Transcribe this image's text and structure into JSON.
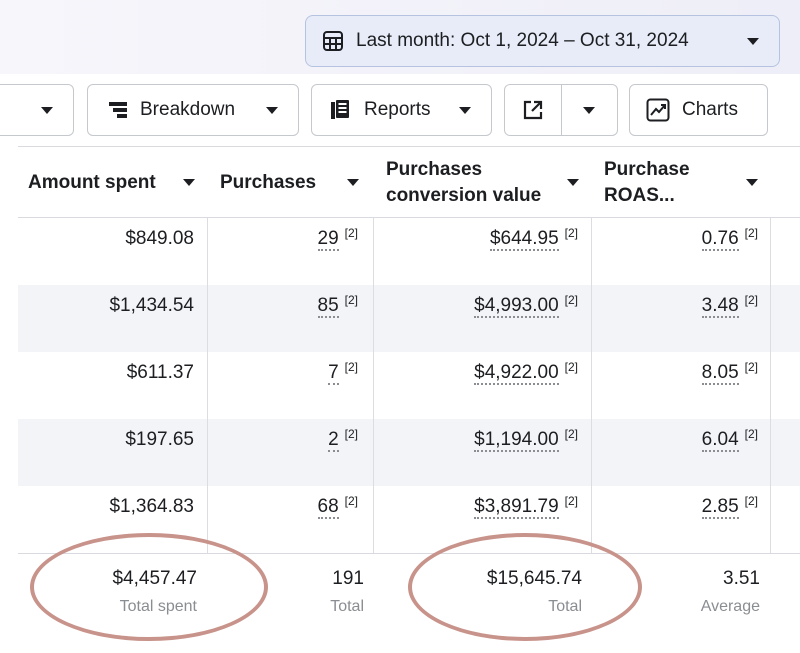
{
  "date_range": {
    "label": "Last month: Oct 1, 2024 – Oct 31, 2024",
    "icon": "calendar-icon"
  },
  "toolbar": {
    "breakdown_label": "Breakdown",
    "reports_label": "Reports",
    "charts_label": "Charts"
  },
  "columns": [
    {
      "label": "Amount spent"
    },
    {
      "label": "Purchases"
    },
    {
      "label_line1": "Purchases",
      "label_line2": "conversion value"
    },
    {
      "label_line1": "Purchase",
      "label_line2": "ROAS..."
    }
  ],
  "rows": [
    {
      "spent": "$849.08",
      "purchases": "29",
      "conv_value": "$644.95",
      "roas": "0.76"
    },
    {
      "spent": "$1,434.54",
      "purchases": "85",
      "conv_value": "$4,993.00",
      "roas": "3.48"
    },
    {
      "spent": "$611.37",
      "purchases": "7",
      "conv_value": "$4,922.00",
      "roas": "8.05"
    },
    {
      "spent": "$197.65",
      "purchases": "2",
      "conv_value": "$1,194.00",
      "roas": "6.04"
    },
    {
      "spent": "$1,364.83",
      "purchases": "68",
      "conv_value": "$3,891.79",
      "roas": "2.85"
    }
  ],
  "ref_mark": "[2]",
  "totals": {
    "spent": "$4,457.47",
    "spent_label": "Total spent",
    "purchases": "191",
    "purchases_label": "Total",
    "conv_value": "$15,645.74",
    "conv_value_label": "Total",
    "roas": "3.51",
    "roas_label": "Average"
  },
  "annotation_color": "#c8938a"
}
